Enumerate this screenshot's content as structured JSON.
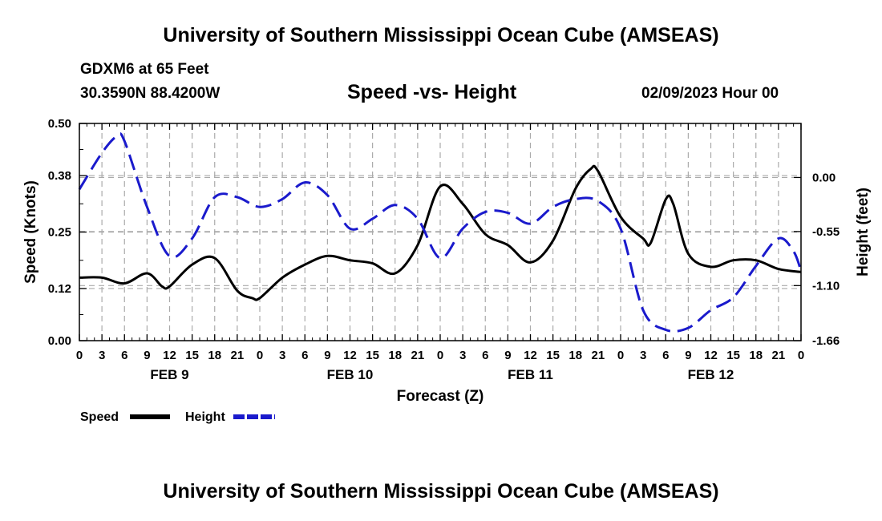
{
  "page": {
    "title": "University of Southern Mississippi Ocean Cube (AMSEAS)",
    "footer_title": "University of Southern Mississippi Ocean Cube (AMSEAS)",
    "station": "GDXM6 at 65 Feet",
    "coordinates": "30.3590N  88.4200W",
    "subtitle": "Speed -vs- Height",
    "datetime": "02/09/2023 Hour 00"
  },
  "chart_data": {
    "type": "line",
    "title": "Speed -vs- Height",
    "xlabel": "Forecast (Z)",
    "ylabel_left": "Speed (Knots)",
    "ylabel_right": "Height (feet)",
    "xlim": [
      0,
      96
    ],
    "ylim_left": [
      0,
      0.5
    ],
    "ylim_right": [
      -1.66,
      0.55
    ],
    "y_ticks_left": [
      0.0,
      0.12,
      0.25,
      0.38,
      0.5
    ],
    "y_tick_labels_left": [
      "0.00",
      "0.12",
      "0.25",
      "0.38",
      "0.50"
    ],
    "y_ticks_right": [
      0.0,
      -0.55,
      -1.1,
      -1.66
    ],
    "y_tick_labels_right": [
      "0.00",
      "-0.55",
      "-1.10",
      "-1.66"
    ],
    "x_ticks": [
      0,
      3,
      6,
      9,
      12,
      15,
      18,
      21,
      24,
      27,
      30,
      33,
      36,
      39,
      42,
      45,
      48,
      51,
      54,
      57,
      60,
      63,
      66,
      69,
      72,
      75,
      78,
      81,
      84,
      87,
      90,
      93,
      96
    ],
    "x_tick_labels": [
      "0",
      "3",
      "6",
      "9",
      "12",
      "15",
      "18",
      "21",
      "0",
      "3",
      "6",
      "9",
      "12",
      "15",
      "18",
      "21",
      "0",
      "3",
      "6",
      "9",
      "12",
      "15",
      "18",
      "21",
      "0",
      "3",
      "6",
      "9",
      "12",
      "15",
      "18",
      "21",
      "0"
    ],
    "date_labels": [
      {
        "label": "FEB 9",
        "x": 12
      },
      {
        "label": "FEB 10",
        "x": 36
      },
      {
        "label": "FEB 11",
        "x": 60
      },
      {
        "label": "FEB 12",
        "x": 84
      }
    ],
    "grid": true,
    "series": [
      {
        "name": "Speed",
        "axis": "left",
        "color": "#000000",
        "style": "solid",
        "points": [
          [
            0,
            0.145
          ],
          [
            3,
            0.145
          ],
          [
            6,
            0.132
          ],
          [
            9,
            0.155
          ],
          [
            11,
            0.125
          ],
          [
            12,
            0.125
          ],
          [
            15,
            0.175
          ],
          [
            18,
            0.19
          ],
          [
            21,
            0.115
          ],
          [
            23,
            0.098
          ],
          [
            24,
            0.098
          ],
          [
            27,
            0.145
          ],
          [
            30,
            0.175
          ],
          [
            33,
            0.195
          ],
          [
            36,
            0.185
          ],
          [
            39,
            0.178
          ],
          [
            42,
            0.155
          ],
          [
            45,
            0.22
          ],
          [
            48,
            0.355
          ],
          [
            51,
            0.315
          ],
          [
            54,
            0.245
          ],
          [
            57,
            0.22
          ],
          [
            60,
            0.18
          ],
          [
            63,
            0.23
          ],
          [
            66,
            0.35
          ],
          [
            68,
            0.395
          ],
          [
            69,
            0.39
          ],
          [
            72,
            0.285
          ],
          [
            75,
            0.235
          ],
          [
            76,
            0.225
          ],
          [
            78,
            0.325
          ],
          [
            79,
            0.315
          ],
          [
            81,
            0.2
          ],
          [
            84,
            0.17
          ],
          [
            87,
            0.185
          ],
          [
            90,
            0.185
          ],
          [
            93,
            0.165
          ],
          [
            96,
            0.158
          ]
        ]
      },
      {
        "name": "Height",
        "axis": "right",
        "color": "#1a1acc",
        "style": "dashed",
        "points": [
          [
            0,
            -0.12
          ],
          [
            3,
            0.25
          ],
          [
            5,
            0.42
          ],
          [
            6,
            0.37
          ],
          [
            9,
            -0.3
          ],
          [
            12,
            -0.8
          ],
          [
            15,
            -0.62
          ],
          [
            18,
            -0.2
          ],
          [
            21,
            -0.2
          ],
          [
            24,
            -0.3
          ],
          [
            27,
            -0.22
          ],
          [
            30,
            -0.05
          ],
          [
            33,
            -0.18
          ],
          [
            36,
            -0.52
          ],
          [
            39,
            -0.42
          ],
          [
            42,
            -0.28
          ],
          [
            45,
            -0.42
          ],
          [
            48,
            -0.82
          ],
          [
            51,
            -0.52
          ],
          [
            54,
            -0.35
          ],
          [
            57,
            -0.36
          ],
          [
            60,
            -0.47
          ],
          [
            63,
            -0.3
          ],
          [
            66,
            -0.22
          ],
          [
            69,
            -0.24
          ],
          [
            72,
            -0.52
          ],
          [
            75,
            -1.35
          ],
          [
            78,
            -1.55
          ],
          [
            81,
            -1.53
          ],
          [
            84,
            -1.35
          ],
          [
            87,
            -1.22
          ],
          [
            90,
            -0.9
          ],
          [
            93,
            -0.62
          ],
          [
            95,
            -0.75
          ],
          [
            96,
            -0.95
          ]
        ]
      }
    ],
    "legend": {
      "placement": "bottom-left",
      "entries": [
        {
          "label": "Speed",
          "color": "#000000",
          "style": "solid"
        },
        {
          "label": "Height",
          "color": "#1a1acc",
          "style": "dashed"
        }
      ]
    }
  }
}
